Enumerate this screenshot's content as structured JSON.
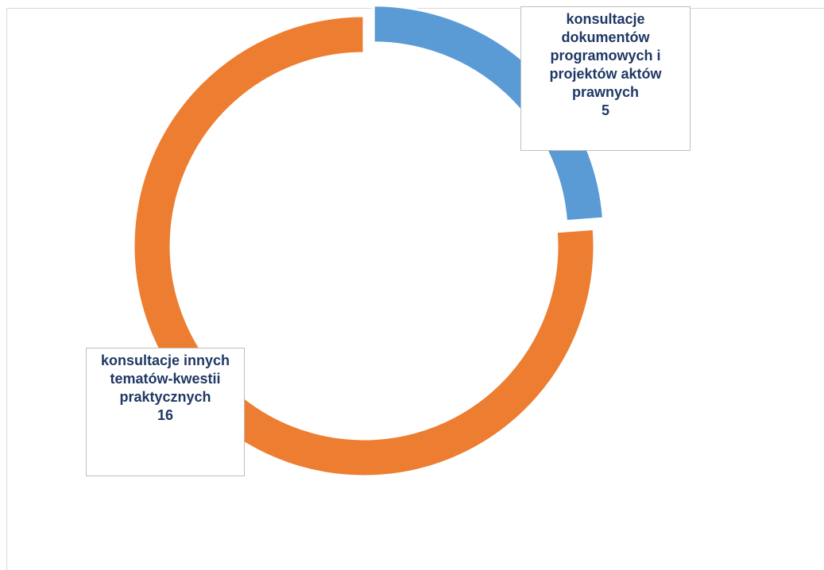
{
  "chart_data": {
    "type": "donut",
    "categories": [
      "konsultacje dokumentów programowych i projektów aktów prawnych",
      "konsultacje innych tematów-kwestii praktycznych"
    ],
    "values": [
      5,
      16
    ],
    "colors": [
      "#5b9bd5",
      "#ed7d31"
    ]
  }
}
